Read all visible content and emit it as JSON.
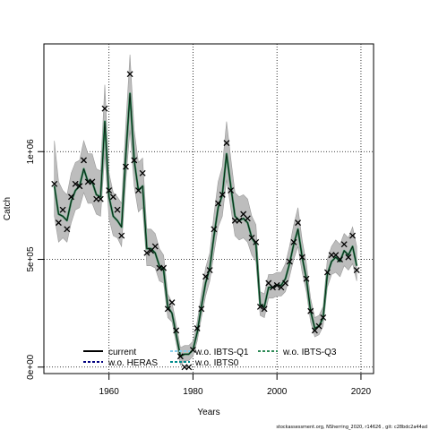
{
  "chart_data": {
    "type": "line",
    "xlabel": "Years",
    "ylabel": "Catch",
    "xlim": [
      1944.5,
      2023
    ],
    "ylim": [
      -30000,
      1500000
    ],
    "x_ticks": [
      1960,
      1980,
      2000,
      2020
    ],
    "x_tick_labels": [
      "1960",
      "1980",
      "2000",
      "2020"
    ],
    "y_ticks": [
      0,
      500000,
      1000000
    ],
    "y_tick_labels": [
      "0e+00",
      "5e+05",
      "1e+06"
    ],
    "grid": "dotted, at ticks",
    "legend_position": "bottom",
    "footer": "stockassessment.org, NSherring_2020, r14626 ,  git: c28bdc2a44ad",
    "legend": [
      {
        "label": "current",
        "color": "#000000"
      },
      {
        "label": "w.o. HERAS",
        "color": "#000080"
      },
      {
        "label": "w.o. IBTS-Q1",
        "color": "#87ceeb"
      },
      {
        "label": "w.o. IBTS0",
        "color": "#008b8b"
      },
      {
        "label": "w.o. IBTS-Q3",
        "color": "#2e8b57"
      }
    ],
    "observed": {
      "marker": "x",
      "x": [
        1947,
        1948,
        1949,
        1950,
        1951,
        1952,
        1953,
        1954,
        1955,
        1956,
        1957,
        1958,
        1959,
        1960,
        1961,
        1962,
        1963,
        1964,
        1965,
        1966,
        1967,
        1968,
        1969,
        1970,
        1971,
        1972,
        1973,
        1974,
        1975,
        1976,
        1977,
        1978,
        1979,
        1980,
        1981,
        1982,
        1983,
        1984,
        1985,
        1986,
        1987,
        1988,
        1989,
        1990,
        1991,
        1992,
        1993,
        1994,
        1995,
        1996,
        1997,
        1998,
        1999,
        2000,
        2001,
        2002,
        2003,
        2004,
        2005,
        2006,
        2007,
        2008,
        2009,
        2010,
        2011,
        2012,
        2013,
        2014,
        2015,
        2016,
        2017,
        2018,
        2019
      ],
      "y": [
        850000,
        670000,
        730000,
        640000,
        790000,
        850000,
        840000,
        960000,
        860000,
        860000,
        780000,
        780000,
        1200000,
        820000,
        790000,
        730000,
        610000,
        930000,
        1360000,
        960000,
        820000,
        900000,
        530000,
        540000,
        560000,
        460000,
        460000,
        270000,
        300000,
        170000,
        50000,
        0,
        0,
        80000,
        180000,
        270000,
        420000,
        450000,
        640000,
        760000,
        800000,
        1040000,
        820000,
        680000,
        680000,
        710000,
        690000,
        600000,
        580000,
        280000,
        270000,
        390000,
        370000,
        380000,
        370000,
        390000,
        490000,
        580000,
        670000,
        510000,
        410000,
        260000,
        170000,
        190000,
        230000,
        440000,
        520000,
        520000,
        500000,
        570000,
        510000,
        610000,
        450000
      ]
    },
    "series": [
      {
        "name": "w.o. IBTS-Q3",
        "color": "#2e8b57",
        "x": [
          1947,
          1948,
          1949,
          1950,
          1951,
          1952,
          1953,
          1954,
          1955,
          1956,
          1957,
          1958,
          1959,
          1960,
          1961,
          1962,
          1963,
          1964,
          1965,
          1966,
          1967,
          1968,
          1969,
          1970,
          1971,
          1972,
          1973,
          1974,
          1975,
          1976,
          1977,
          1978,
          1979,
          1980,
          1981,
          1982,
          1983,
          1984,
          1985,
          1986,
          1987,
          1988,
          1989,
          1990,
          1991,
          1992,
          1993,
          1994,
          1995,
          1996,
          1997,
          1998,
          1999,
          2000,
          2001,
          2002,
          2003,
          2004,
          2005,
          2006,
          2007,
          2008,
          2009,
          2010,
          2011,
          2012,
          2013,
          2014,
          2015,
          2016,
          2017,
          2018,
          2019
        ],
        "y": [
          840000,
          710000,
          700000,
          680000,
          770000,
          820000,
          840000,
          920000,
          860000,
          860000,
          800000,
          790000,
          1140000,
          790000,
          700000,
          680000,
          650000,
          980000,
          1270000,
          960000,
          820000,
          840000,
          550000,
          550000,
          530000,
          470000,
          450000,
          280000,
          250000,
          150000,
          50000,
          60000,
          60000,
          80000,
          160000,
          280000,
          390000,
          460000,
          610000,
          740000,
          800000,
          990000,
          840000,
          700000,
          680000,
          690000,
          670000,
          600000,
          570000,
          290000,
          280000,
          370000,
          370000,
          380000,
          380000,
          410000,
          480000,
          570000,
          640000,
          510000,
          410000,
          260000,
          180000,
          190000,
          230000,
          430000,
          490000,
          510000,
          490000,
          540000,
          520000,
          560000,
          470000
        ],
        "band_lower": [
          700000,
          580000,
          600000,
          580000,
          670000,
          730000,
          740000,
          810000,
          760000,
          760000,
          710000,
          700000,
          990000,
          690000,
          610000,
          600000,
          560000,
          860000,
          1100000,
          840000,
          720000,
          740000,
          470000,
          470000,
          460000,
          400000,
          390000,
          230000,
          210000,
          110000,
          10000,
          30000,
          30000,
          50000,
          120000,
          230000,
          330000,
          400000,
          530000,
          650000,
          700000,
          870000,
          740000,
          610000,
          590000,
          600000,
          580000,
          520000,
          490000,
          240000,
          230000,
          320000,
          320000,
          330000,
          330000,
          350000,
          420000,
          500000,
          560000,
          440000,
          350000,
          210000,
          140000,
          150000,
          190000,
          370000,
          430000,
          440000,
          420000,
          470000,
          450000,
          480000,
          400000
        ],
        "band_upper": [
          1050000,
          860000,
          820000,
          800000,
          900000,
          950000,
          960000,
          1050000,
          990000,
          990000,
          920000,
          910000,
          1310000,
          900000,
          810000,
          790000,
          760000,
          1120000,
          1450000,
          1100000,
          950000,
          970000,
          640000,
          640000,
          620000,
          550000,
          520000,
          340000,
          300000,
          200000,
          90000,
          100000,
          100000,
          120000,
          210000,
          340000,
          460000,
          530000,
          710000,
          860000,
          930000,
          1140000,
          970000,
          810000,
          790000,
          800000,
          780000,
          700000,
          660000,
          350000,
          340000,
          430000,
          430000,
          440000,
          440000,
          480000,
          560000,
          660000,
          740000,
          590000,
          480000,
          320000,
          230000,
          240000,
          280000,
          500000,
          560000,
          590000,
          570000,
          620000,
          600000,
          650000,
          560000
        ]
      },
      {
        "name": "current",
        "color": "#000000",
        "x": [
          1947,
          1948,
          1949,
          1950,
          1951,
          1952,
          1953,
          1954,
          1955,
          1956,
          1957,
          1958,
          1959,
          1960,
          1961,
          1962,
          1963,
          1964,
          1965,
          1966,
          1967,
          1968,
          1969,
          1970,
          1971,
          1972,
          1973,
          1974,
          1975,
          1976,
          1977,
          1978,
          1979,
          1980,
          1981,
          1982,
          1983,
          1984,
          1985,
          1986,
          1987,
          1988,
          1989,
          1990,
          1991,
          1992,
          1993,
          1994,
          1995,
          1996,
          1997,
          1998,
          1999,
          2000,
          2001,
          2002,
          2003,
          2004,
          2005,
          2006,
          2007,
          2008,
          2009,
          2010,
          2011,
          2012,
          2013,
          2014,
          2015,
          2016,
          2017,
          2018,
          2019
        ],
        "y": [
          840000,
          710000,
          700000,
          680000,
          770000,
          820000,
          840000,
          920000,
          860000,
          860000,
          800000,
          790000,
          1140000,
          790000,
          700000,
          680000,
          650000,
          980000,
          1270000,
          960000,
          820000,
          840000,
          550000,
          550000,
          530000,
          470000,
          450000,
          280000,
          250000,
          150000,
          50000,
          60000,
          60000,
          80000,
          160000,
          280000,
          390000,
          460000,
          610000,
          740000,
          800000,
          990000,
          840000,
          700000,
          680000,
          690000,
          670000,
          600000,
          570000,
          290000,
          280000,
          370000,
          370000,
          380000,
          380000,
          410000,
          480000,
          570000,
          640000,
          510000,
          410000,
          260000,
          180000,
          190000,
          230000,
          430000,
          490000,
          510000,
          490000,
          540000,
          520000,
          560000,
          470000
        ]
      }
    ]
  }
}
